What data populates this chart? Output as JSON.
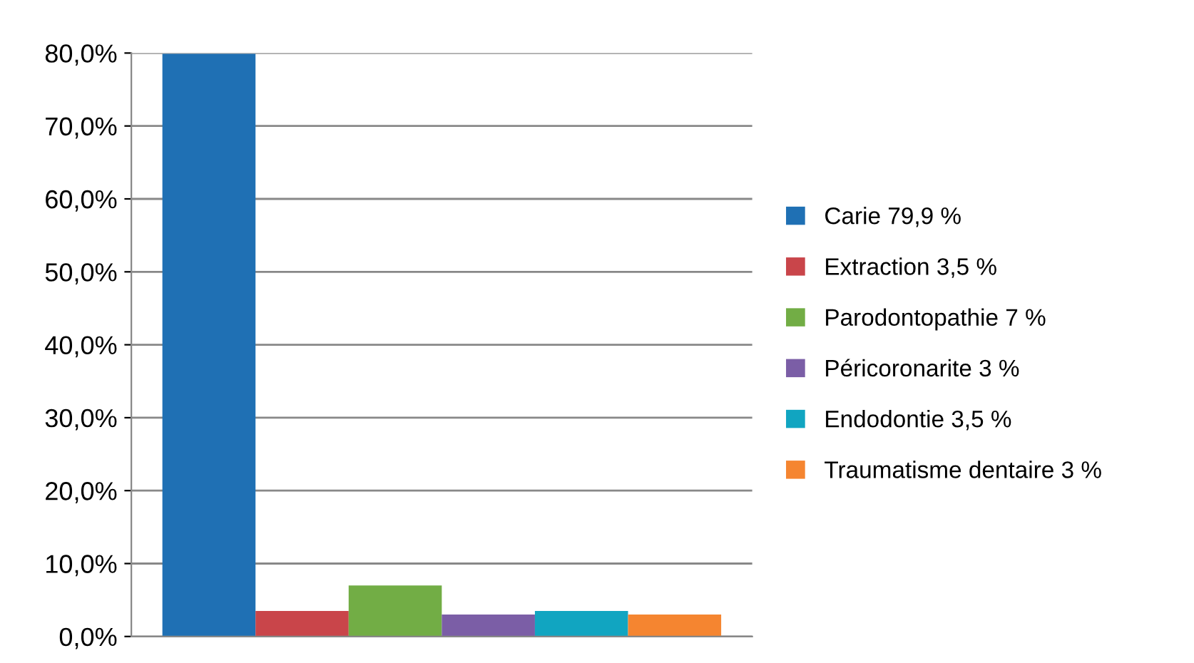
{
  "chart_data": {
    "type": "bar",
    "categories": [
      null
    ],
    "series": [
      {
        "name": "Carie 79,9 %",
        "color": "#1f70b4",
        "values": [
          79.9
        ]
      },
      {
        "name": "Extraction 3,5 %",
        "color": "#c9454a",
        "values": [
          3.5
        ]
      },
      {
        "name": "Parodontopathie 7 %",
        "color": "#72ad45",
        "values": [
          7
        ]
      },
      {
        "name": "Péricoronarite 3 %",
        "color": "#7b5ea6",
        "values": [
          3
        ]
      },
      {
        "name": "Endodontie 3,5 %",
        "color": "#11a5c1",
        "values": [
          3.5
        ]
      },
      {
        "name": "Traumatisme dentaire 3 %",
        "color": "#f58530",
        "values": [
          3
        ]
      }
    ],
    "ylim": [
      0,
      80
    ],
    "yticks": [
      {
        "value": 0,
        "label": "0,0%"
      },
      {
        "value": 10,
        "label": "10,0%"
      },
      {
        "value": 20,
        "label": "20,0%"
      },
      {
        "value": 30,
        "label": "30,0%"
      },
      {
        "value": 40,
        "label": "40,0%"
      },
      {
        "value": 50,
        "label": "50,0%"
      },
      {
        "value": 60,
        "label": "60,0%"
      },
      {
        "value": 70,
        "label": "70,0%"
      },
      {
        "value": 80,
        "label": "80,0%"
      }
    ],
    "grid": "y",
    "legend": "right"
  }
}
